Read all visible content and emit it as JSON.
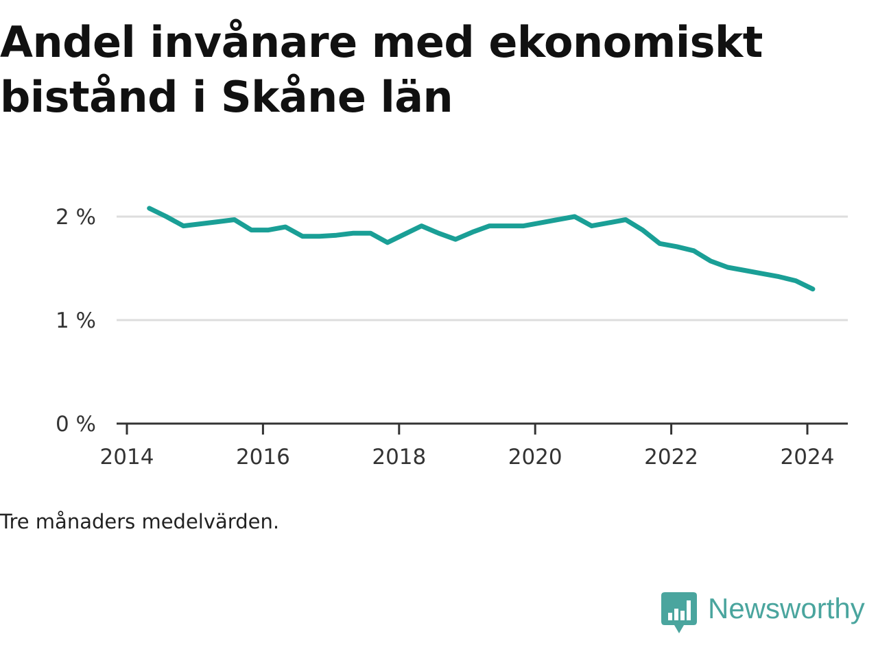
{
  "title": "Andel invånare med ekonomiskt bistånd i Skåne län",
  "note": "Tre månaders medelvärden.",
  "brand": {
    "name": "Newsworthy",
    "logo_icon": "bar-chart-speech-bubble-icon",
    "color": "#4aa59e"
  },
  "chart_data": {
    "type": "line",
    "title": "Andel invånare med ekonomiskt bistånd i Skåne län",
    "xlabel": "",
    "ylabel": "",
    "x_ticks": [
      "2014",
      "2016",
      "2018",
      "2020",
      "2022",
      "2024"
    ],
    "y_ticks": [
      "0 %",
      "1 %",
      "2 %"
    ],
    "xlim": [
      2014,
      2024.7
    ],
    "ylim": [
      0,
      2
    ],
    "grid": true,
    "line_color": "#1a9f96",
    "series": [
      {
        "x": [
          2014.33,
          2014.58,
          2014.83,
          2015.08,
          2015.33,
          2015.58,
          2015.83,
          2016.08,
          2016.33,
          2016.58,
          2016.83,
          2017.08,
          2017.33,
          2017.58,
          2017.83,
          2018.08,
          2018.33,
          2018.58,
          2018.83,
          2019.08,
          2019.33,
          2019.58,
          2019.83,
          2020.08,
          2020.33,
          2020.58,
          2020.83,
          2021.08,
          2021.33,
          2021.58,
          2021.83,
          2022.08,
          2022.33,
          2022.58,
          2022.83,
          2023.08,
          2023.33,
          2023.58,
          2023.83,
          2024.08
        ],
        "y": [
          2.08,
          2.0,
          1.91,
          1.93,
          1.95,
          1.97,
          1.87,
          1.87,
          1.9,
          1.81,
          1.81,
          1.82,
          1.84,
          1.84,
          1.75,
          1.83,
          1.91,
          1.84,
          1.78,
          1.85,
          1.91,
          1.91,
          1.91,
          1.94,
          1.97,
          2.0,
          1.91,
          1.94,
          1.97,
          1.87,
          1.74,
          1.71,
          1.67,
          1.57,
          1.51,
          1.48,
          1.45,
          1.42,
          1.38,
          1.3
        ]
      }
    ]
  }
}
